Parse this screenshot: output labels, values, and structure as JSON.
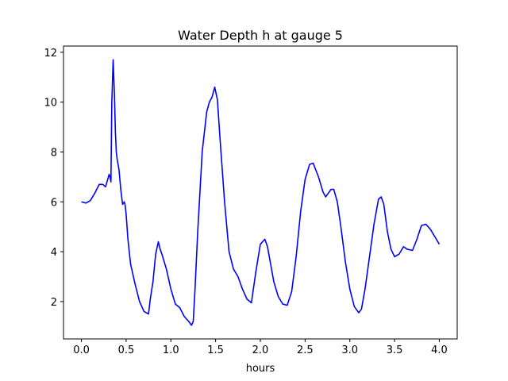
{
  "chart_data": {
    "type": "line",
    "title": "Water Depth h at gauge 5",
    "xlabel": "hours",
    "ylabel": "",
    "xlim": [
      -0.2,
      4.2
    ],
    "ylim": [
      0.5,
      12.25
    ],
    "xticks": [
      0.0,
      0.5,
      1.0,
      1.5,
      2.0,
      2.5,
      3.0,
      3.5,
      4.0
    ],
    "xtick_labels": [
      "0.0",
      "0.5",
      "1.0",
      "1.5",
      "2.0",
      "2.5",
      "3.0",
      "3.5",
      "4.0"
    ],
    "yticks": [
      2,
      4,
      6,
      8,
      10,
      12
    ],
    "ytick_labels": [
      "2",
      "4",
      "6",
      "8",
      "10",
      "12"
    ],
    "grid": false,
    "line_color": "#0000ff",
    "series": [
      {
        "x": [
          0.0,
          0.05,
          0.1,
          0.15,
          0.2,
          0.24,
          0.27,
          0.29,
          0.31,
          0.32,
          0.33,
          0.34,
          0.355,
          0.37,
          0.38,
          0.39,
          0.4,
          0.42,
          0.44,
          0.46,
          0.48,
          0.49,
          0.5,
          0.51,
          0.52,
          0.55,
          0.6,
          0.65,
          0.7,
          0.75,
          0.77,
          0.8,
          0.83,
          0.86,
          0.88,
          0.9,
          0.95,
          1.0,
          1.05,
          1.1,
          1.15,
          1.2,
          1.23,
          1.25,
          1.27,
          1.3,
          1.35,
          1.4,
          1.43,
          1.46,
          1.49,
          1.52,
          1.55,
          1.6,
          1.65,
          1.7,
          1.75,
          1.8,
          1.85,
          1.9,
          1.95,
          2.0,
          2.05,
          2.08,
          2.1,
          2.15,
          2.2,
          2.25,
          2.3,
          2.35,
          2.4,
          2.45,
          2.5,
          2.55,
          2.59,
          2.65,
          2.7,
          2.73,
          2.76,
          2.79,
          2.82,
          2.86,
          2.9,
          2.95,
          3.0,
          3.05,
          3.1,
          3.13,
          3.17,
          3.22,
          3.27,
          3.32,
          3.35,
          3.38,
          3.42,
          3.46,
          3.5,
          3.55,
          3.6,
          3.64,
          3.7,
          3.75,
          3.8,
          3.85,
          3.9,
          3.95,
          4.0
        ],
        "y": [
          6.0,
          5.95,
          6.05,
          6.35,
          6.7,
          6.7,
          6.6,
          6.85,
          7.1,
          7.0,
          6.8,
          10.0,
          11.7,
          10.2,
          8.8,
          8.0,
          7.7,
          7.3,
          6.5,
          5.9,
          6.0,
          5.85,
          5.5,
          5.0,
          4.5,
          3.5,
          2.7,
          2.0,
          1.6,
          1.5,
          2.1,
          2.8,
          3.9,
          4.4,
          4.1,
          3.9,
          3.3,
          2.5,
          1.9,
          1.75,
          1.4,
          1.2,
          1.05,
          1.2,
          2.5,
          4.8,
          8.0,
          9.6,
          10.0,
          10.2,
          10.6,
          10.1,
          8.5,
          6.0,
          4.0,
          3.3,
          3.0,
          2.5,
          2.1,
          1.95,
          3.2,
          4.3,
          4.5,
          4.2,
          3.8,
          2.8,
          2.2,
          1.9,
          1.85,
          2.4,
          3.8,
          5.6,
          6.9,
          7.5,
          7.55,
          7.0,
          6.4,
          6.2,
          6.35,
          6.5,
          6.5,
          6.0,
          5.0,
          3.6,
          2.5,
          1.8,
          1.55,
          1.7,
          2.5,
          3.8,
          5.1,
          6.1,
          6.2,
          5.9,
          4.8,
          4.1,
          3.8,
          3.9,
          4.2,
          4.1,
          4.05,
          4.5,
          5.05,
          5.1,
          4.9,
          4.6,
          4.3
        ]
      }
    ]
  }
}
